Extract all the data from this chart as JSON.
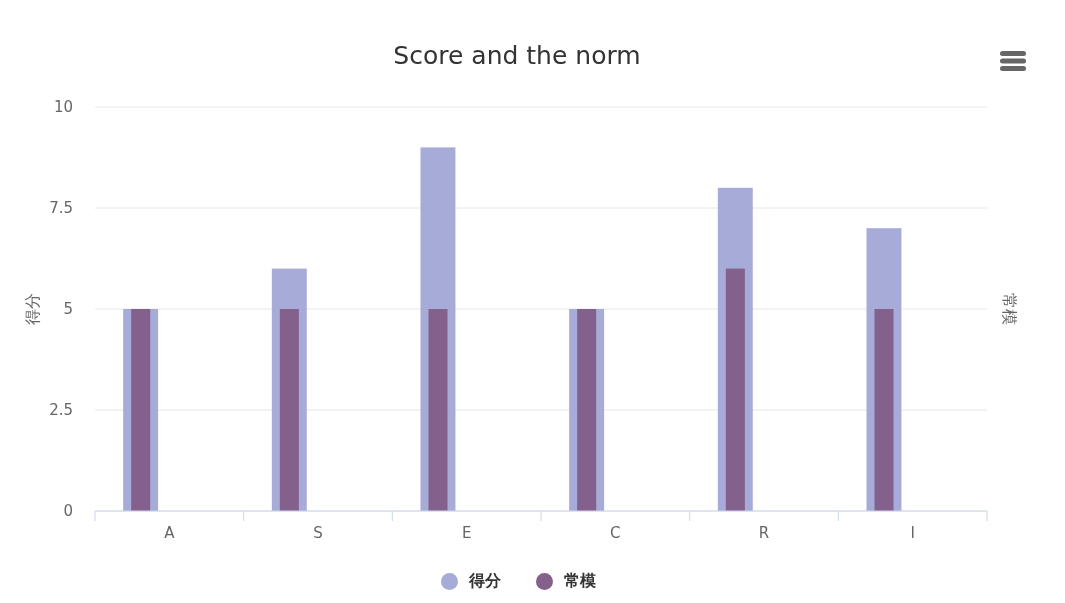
{
  "chart_data": {
    "type": "bar",
    "title": "Score and the norm",
    "ylabel": "得分",
    "y2label": "常模",
    "categories": [
      "A",
      "S",
      "E",
      "C",
      "R",
      "I"
    ],
    "series": [
      {
        "name": "得分",
        "color": "#a6abd8",
        "values": [
          5,
          6,
          9,
          5,
          8,
          7
        ]
      },
      {
        "name": "常模",
        "color": "#84608c",
        "values": [
          5,
          5,
          5,
          5,
          6,
          5
        ]
      }
    ],
    "ylim": [
      0,
      10
    ],
    "yticks": [
      0,
      2.5,
      5,
      7.5,
      10
    ],
    "grid": "y",
    "legend": "bottom"
  }
}
